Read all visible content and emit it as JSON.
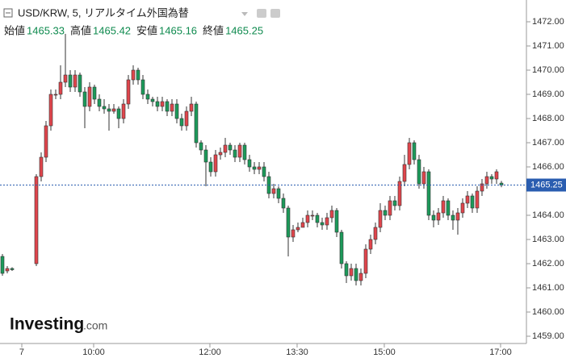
{
  "chart_data": {
    "type": "candlestick",
    "title": "USD/KRW, 5, リアルタイム外国為替",
    "ohlc_labels": [
      "始値",
      "高値",
      "安値",
      "終値"
    ],
    "ohlc_values": [
      1465.33,
      1465.42,
      1465.16,
      1465.25
    ],
    "logo": "Investing",
    "logo_suffix": ".com",
    "last_price": 1465.25,
    "up_color": "#e0454c",
    "down_color": "#1c9a5a",
    "line_color": "#2a5db0",
    "xlim": [
      0,
      108.67
    ],
    "ylim": [
      1458.7,
      1472.9
    ],
    "xticks": [
      {
        "value": 4.5,
        "label": "7"
      },
      {
        "value": 19.33,
        "label": "10:00"
      },
      {
        "value": 43.33,
        "label": "12:00"
      },
      {
        "value": 61.33,
        "label": "13:30"
      },
      {
        "value": 79.33,
        "label": "15:00"
      },
      {
        "value": 103.33,
        "label": "17:00"
      }
    ],
    "yticks": [
      {
        "value": 1459,
        "label": "1459.00"
      },
      {
        "value": 1460,
        "label": "1460.00"
      },
      {
        "value": 1461,
        "label": "1461.00"
      },
      {
        "value": 1462,
        "label": "1462.00"
      },
      {
        "value": 1463,
        "label": "1463.00"
      },
      {
        "value": 1464,
        "label": "1464.00"
      },
      {
        "value": 1466,
        "label": "1466.00"
      },
      {
        "value": 1467,
        "label": "1467.00"
      },
      {
        "value": 1468,
        "label": "1468.00"
      },
      {
        "value": 1469,
        "label": "1469.00"
      },
      {
        "value": 1470,
        "label": "1470.00"
      },
      {
        "value": 1471,
        "label": "1471.00"
      },
      {
        "value": 1472,
        "label": "1472.00"
      }
    ],
    "x": [
      0.5,
      1.5,
      2.5,
      7.5,
      8.5,
      9.5,
      10.5,
      11.5,
      12.5,
      13.5,
      14.5,
      15.5,
      16.5,
      17.5,
      18.5,
      19.5,
      20.5,
      21.5,
      22.5,
      23.5,
      24.5,
      25.5,
      26.5,
      27.5,
      28.5,
      29.5,
      30.5,
      31.5,
      32.5,
      33.5,
      34.5,
      35.5,
      36.5,
      37.5,
      38.5,
      39.5,
      40.5,
      41.5,
      42.5,
      43.5,
      44.5,
      45.5,
      46.5,
      47.5,
      48.5,
      49.5,
      50.5,
      51.5,
      52.5,
      53.5,
      54.5,
      55.5,
      56.5,
      57.5,
      58.5,
      59.5,
      60.5,
      61.5,
      62.5,
      63.5,
      64.5,
      65.5,
      66.5,
      67.5,
      68.5,
      69.5,
      70.5,
      71.5,
      72.5,
      73.5,
      74.5,
      75.5,
      76.5,
      77.5,
      78.5,
      79.5,
      80.5,
      81.5,
      82.5,
      83.5,
      84.5,
      85.5,
      86.5,
      87.5,
      88.5,
      89.5,
      90.5,
      91.5,
      92.5,
      93.5,
      94.5,
      95.5,
      96.5,
      97.5,
      98.5,
      99.5,
      100.5,
      101.5,
      102.5,
      103.5
    ],
    "open": [
      1462.3,
      1461.7,
      1461.8,
      1462.0,
      1465.6,
      1466.4,
      1467.7,
      1469.0,
      1469.0,
      1469.5,
      1469.8,
      1469.3,
      1469.8,
      1469.1,
      1468.5,
      1469.3,
      1468.8,
      1468.5,
      1468.4,
      1468.3,
      1468.4,
      1468.0,
      1468.6,
      1469.6,
      1470.0,
      1469.6,
      1469.0,
      1468.8,
      1468.7,
      1468.5,
      1468.7,
      1468.3,
      1468.6,
      1468.0,
      1467.7,
      1468.3,
      1468.6,
      1467.0,
      1466.7,
      1466.2,
      1465.8,
      1466.5,
      1466.6,
      1466.9,
      1466.7,
      1466.4,
      1466.9,
      1466.3,
      1466.0,
      1465.9,
      1466.0,
      1465.6,
      1464.9,
      1465.1,
      1464.7,
      1464.3,
      1463.1,
      1463.4,
      1463.5,
      1463.7,
      1464.0,
      1464.0,
      1463.7,
      1463.6,
      1463.9,
      1464.2,
      1463.3,
      1462.0,
      1461.5,
      1461.8,
      1461.3,
      1461.6,
      1462.6,
      1463.0,
      1463.5,
      1464.2,
      1464.0,
      1464.6,
      1464.4,
      1465.4,
      1466.1,
      1467.0,
      1466.3,
      1465.3,
      1465.8,
      1464.0,
      1463.8,
      1464.1,
      1464.6,
      1464.0,
      1463.8,
      1464.1,
      1464.5,
      1464.8,
      1464.3,
      1465.0,
      1465.3,
      1465.6,
      1465.5,
      1465.33
    ],
    "high": [
      1462.4,
      1461.9,
      1461.85,
      1465.7,
      1466.6,
      1467.9,
      1469.2,
      1469.2,
      1470.2,
      1471.5,
      1470.0,
      1470.0,
      1469.9,
      1469.3,
      1469.5,
      1469.4,
      1469.0,
      1468.8,
      1468.6,
      1468.6,
      1468.5,
      1468.8,
      1469.8,
      1470.2,
      1470.1,
      1469.8,
      1469.2,
      1468.9,
      1468.9,
      1468.9,
      1468.8,
      1468.8,
      1468.8,
      1468.2,
      1468.5,
      1468.9,
      1468.7,
      1467.1,
      1466.9,
      1466.4,
      1466.7,
      1466.8,
      1467.2,
      1467.0,
      1466.9,
      1467.0,
      1467.0,
      1466.5,
      1466.2,
      1466.2,
      1466.2,
      1465.8,
      1465.3,
      1465.2,
      1464.9,
      1464.4,
      1463.6,
      1463.7,
      1463.9,
      1464.2,
      1464.2,
      1464.1,
      1463.9,
      1464.1,
      1464.4,
      1464.3,
      1463.4,
      1462.1,
      1462.0,
      1462.0,
      1461.8,
      1462.8,
      1463.2,
      1463.7,
      1464.5,
      1464.4,
      1464.8,
      1464.8,
      1465.6,
      1466.5,
      1467.2,
      1467.1,
      1466.5,
      1466.0,
      1465.9,
      1464.2,
      1464.3,
      1464.8,
      1464.7,
      1464.2,
      1464.3,
      1464.7,
      1465.0,
      1464.9,
      1465.2,
      1465.5,
      1465.8,
      1465.7,
      1465.9,
      1465.42
    ],
    "low": [
      1461.5,
      1461.6,
      1461.7,
      1461.9,
      1465.4,
      1466.2,
      1467.5,
      1468.8,
      1468.8,
      1469.3,
      1469.1,
      1469.1,
      1468.9,
      1467.6,
      1468.3,
      1468.6,
      1468.3,
      1468.2,
      1467.5,
      1468.2,
      1467.6,
      1467.8,
      1468.4,
      1469.4,
      1469.4,
      1468.8,
      1468.6,
      1468.5,
      1468.3,
      1468.3,
      1468.1,
      1468.1,
      1467.8,
      1467.5,
      1467.5,
      1468.1,
      1466.8,
      1466.5,
      1465.2,
      1465.6,
      1465.6,
      1466.3,
      1466.4,
      1466.5,
      1466.2,
      1466.2,
      1466.1,
      1465.8,
      1465.7,
      1465.7,
      1465.4,
      1464.7,
      1464.7,
      1464.5,
      1464.1,
      1462.3,
      1462.9,
      1463.3,
      1463.5,
      1463.5,
      1463.8,
      1463.5,
      1463.4,
      1463.4,
      1463.7,
      1463.1,
      1461.8,
      1461.2,
      1461.3,
      1461.1,
      1461.1,
      1461.4,
      1462.4,
      1462.8,
      1463.3,
      1463.8,
      1463.8,
      1464.2,
      1464.2,
      1465.2,
      1465.9,
      1466.1,
      1465.1,
      1465.1,
      1463.8,
      1463.5,
      1463.6,
      1463.9,
      1463.8,
      1463.4,
      1463.2,
      1463.9,
      1464.3,
      1464.1,
      1464.1,
      1464.8,
      1465.1,
      1465.3,
      1465.3,
      1465.16
    ],
    "close": [
      1461.6,
      1461.8,
      1461.75,
      1465.6,
      1466.4,
      1467.7,
      1469.0,
      1469.0,
      1469.5,
      1469.8,
      1469.3,
      1469.8,
      1469.1,
      1468.5,
      1469.3,
      1468.8,
      1468.5,
      1468.4,
      1468.3,
      1468.4,
      1468.0,
      1468.6,
      1469.6,
      1470.0,
      1469.6,
      1469.0,
      1468.8,
      1468.7,
      1468.5,
      1468.7,
      1468.3,
      1468.6,
      1468.0,
      1467.7,
      1468.3,
      1468.6,
      1467.0,
      1466.7,
      1466.2,
      1465.8,
      1466.5,
      1466.6,
      1466.9,
      1466.7,
      1466.4,
      1466.9,
      1466.3,
      1466.0,
      1465.9,
      1466.0,
      1465.6,
      1464.9,
      1465.1,
      1464.7,
      1464.3,
      1463.1,
      1463.4,
      1463.5,
      1463.7,
      1464.0,
      1464.0,
      1463.7,
      1463.6,
      1463.9,
      1464.2,
      1463.3,
      1462.0,
      1461.5,
      1461.8,
      1461.3,
      1461.6,
      1462.6,
      1463.0,
      1463.5,
      1464.2,
      1464.0,
      1464.6,
      1464.4,
      1465.4,
      1466.1,
      1467.0,
      1466.3,
      1465.3,
      1465.8,
      1464.0,
      1463.8,
      1464.1,
      1464.6,
      1464.0,
      1463.8,
      1464.1,
      1464.5,
      1464.8,
      1464.3,
      1465.0,
      1465.3,
      1465.6,
      1465.5,
      1465.8,
      1465.25
    ]
  }
}
